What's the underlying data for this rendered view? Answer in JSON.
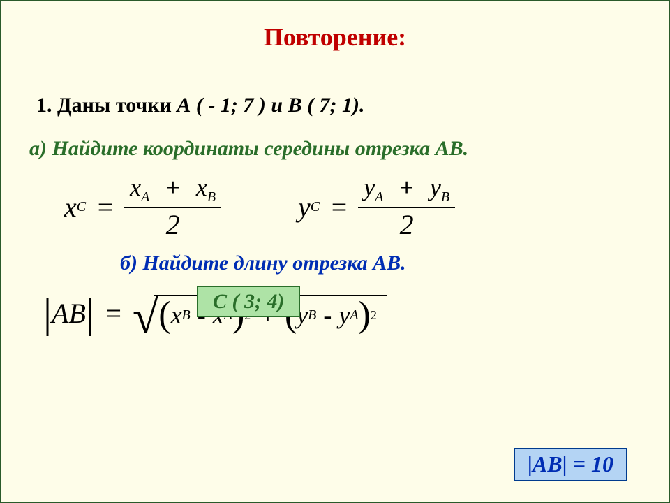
{
  "title": "Повторение:",
  "problem": {
    "prefix": "1. Даны точки",
    "pts": "А ( - 1; 7 ) и В ( 7; 1)."
  },
  "partA": {
    "label": "а)  Найдите координаты середины отрезка АВ.",
    "answer": "С ( 3; 4)",
    "formula_x": {
      "lhs_var": "x",
      "lhs_sub": "C",
      "n1v": "x",
      "n1s": "A",
      "op": "+",
      "n2v": "x",
      "n2s": "B",
      "den": "2"
    },
    "formula_y": {
      "lhs_var": "y",
      "lhs_sub": "C",
      "n1v": "y",
      "n1s": "A",
      "op": "+",
      "n2v": "y",
      "n2s": "B",
      "den": "2"
    }
  },
  "partB": {
    "label": "б)  Найдите длину отрезка АВ.",
    "lhs": "АВ",
    "t1": {
      "a_v": "x",
      "a_s": "B",
      "b_v": "x",
      "b_s": "A",
      "pow": "2"
    },
    "t2": {
      "a_v": "y",
      "a_s": "B",
      "b_v": "y",
      "b_s": "A",
      "pow": "2"
    },
    "answer": "|АВ| = 10"
  },
  "colors": {
    "bg": "#fefde9",
    "title": "#c00000",
    "partA": "#2a6e2a",
    "partB": "#002db3",
    "ansA_bg": "#aee3a6",
    "ansB_bg": "#b4d4f4"
  }
}
